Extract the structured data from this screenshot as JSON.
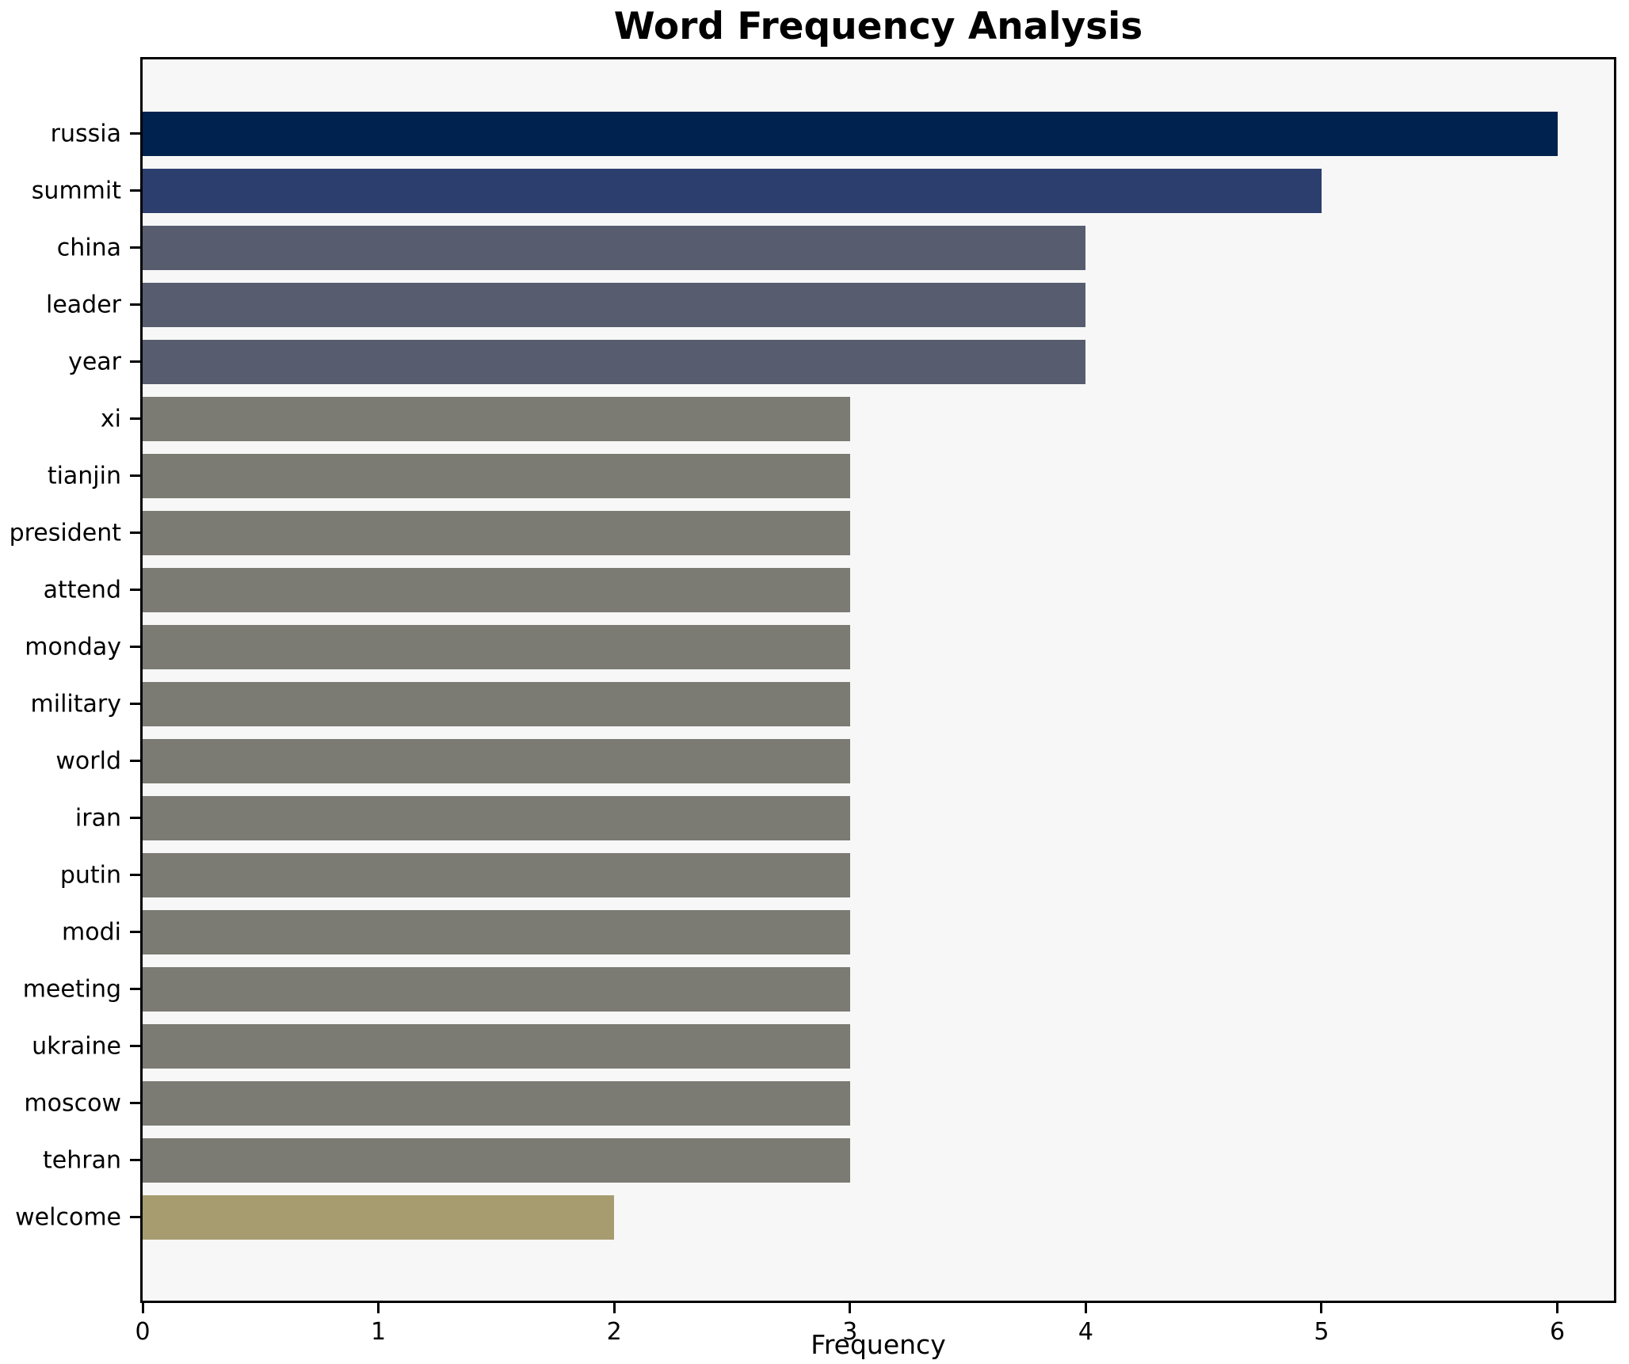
{
  "chart_data": {
    "type": "bar",
    "orientation": "horizontal",
    "title": "Word Frequency Analysis",
    "xlabel": "Frequency",
    "ylabel": "",
    "categories": [
      "russia",
      "summit",
      "china",
      "leader",
      "year",
      "xi",
      "tianjin",
      "president",
      "attend",
      "monday",
      "military",
      "world",
      "iran",
      "putin",
      "modi",
      "meeting",
      "ukraine",
      "moscow",
      "tehran",
      "welcome"
    ],
    "values": [
      6,
      5,
      4,
      4,
      4,
      3,
      3,
      3,
      3,
      3,
      3,
      3,
      3,
      3,
      3,
      3,
      3,
      3,
      3,
      2
    ],
    "bar_colors": [
      "#00224e",
      "#2c3e6d",
      "#575d6f",
      "#575d6f",
      "#575d6f",
      "#7b7a73",
      "#7b7a73",
      "#7b7a73",
      "#7b7a73",
      "#7b7a73",
      "#7b7a73",
      "#7b7a73",
      "#7b7a73",
      "#7b7a73",
      "#7b7a73",
      "#7b7a73",
      "#7b7a73",
      "#7b7a73",
      "#7b7a73",
      "#a69c70"
    ],
    "xticks": [
      0,
      1,
      2,
      3,
      4,
      5,
      6
    ],
    "xlim": [
      0,
      6.24
    ],
    "grid": false,
    "legend": false,
    "plot_background": "#f7f7f7",
    "figure_background": "#ffffff",
    "axis_color": "#000000"
  }
}
